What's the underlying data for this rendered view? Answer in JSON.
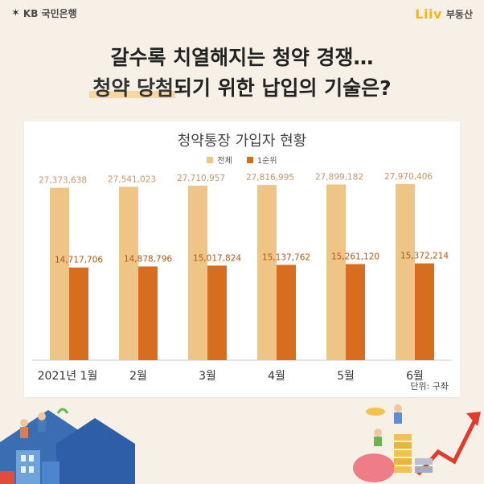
{
  "branding": {
    "kb_name": "KB 국민은행",
    "liiv_logo": "Liiv",
    "liiv_sub": "부동산"
  },
  "headline": {
    "line1": "갈수록 치열해지는 청약 경쟁…",
    "line2_highlight": "청약 당첨",
    "line2_rest": "되기 위한 납입의 기술은?"
  },
  "colors": {
    "total": "#efc487",
    "rank1": "#d66d1f",
    "background": "#f6f0e6",
    "label_total": "#c8956a",
    "label_rank1": "#b2581a"
  },
  "chart_data": {
    "type": "bar",
    "title": "청약통장 가입자 현황",
    "categories": [
      "2021년 1월",
      "2월",
      "3월",
      "4월",
      "5월",
      "6월"
    ],
    "series": [
      {
        "name": "전체",
        "values": [
          27373638,
          27541023,
          27710957,
          27816995,
          27899182,
          27970406
        ]
      },
      {
        "name": "1순위",
        "values": [
          14717706,
          14878796,
          15017824,
          15137762,
          15261120,
          15372214
        ]
      }
    ],
    "value_labels": {
      "전체": [
        "27,373,638",
        "27,541,023",
        "27,710,957",
        "27,816,995",
        "27,899,182",
        "27,970,406"
      ],
      "1순위": [
        "14,717,706",
        "14,878,796",
        "15,017,824",
        "15,137,762",
        "15,261,120",
        "15,372,214"
      ]
    },
    "unit": "단위: 구좌",
    "legend_position": "top",
    "grid": false,
    "ylim": [
      0,
      30000000
    ]
  }
}
